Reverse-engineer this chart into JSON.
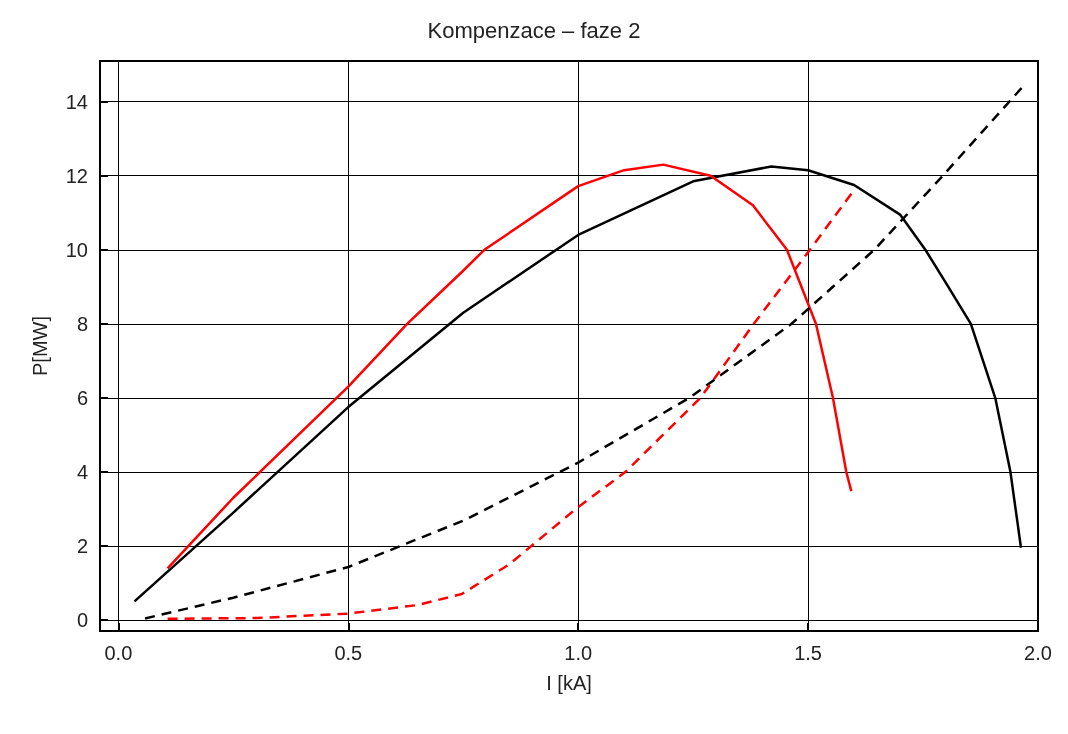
{
  "chart_data": {
    "type": "line",
    "title": "Kompenzace – faze 2",
    "xlabel": "I [kA]",
    "ylabel": "P[MW]",
    "xlim": [
      -0.04,
      2.0
    ],
    "ylim": [
      -0.3,
      15.1
    ],
    "xticks": [
      {
        "value": 0,
        "label": "0.0"
      },
      {
        "value": 0.5,
        "label": "0.5"
      },
      {
        "value": 1,
        "label": "1.0"
      },
      {
        "value": 1.5,
        "label": "1.5"
      },
      {
        "value": 2,
        "label": "2.0"
      }
    ],
    "yticks": [
      0,
      2,
      4,
      6,
      8,
      10,
      12,
      14
    ],
    "grid": true,
    "marker": "none",
    "series": [
      {
        "color": "#000000",
        "line_style": "solid",
        "x": [
          0.035,
          0.25,
          0.5,
          0.75,
          1.0,
          1.25,
          1.42,
          1.5,
          1.6,
          1.7,
          1.755,
          1.8,
          1.854,
          1.907,
          1.94,
          1.963
        ],
        "values": [
          0.5,
          2.9,
          5.75,
          8.3,
          10.4,
          11.85,
          12.25,
          12.15,
          11.75,
          10.95,
          10,
          9.1,
          8,
          6,
          4,
          1.95
        ]
      },
      {
        "color": "#ff0000",
        "line_style": "solid",
        "x": [
          0.107,
          0.25,
          0.5,
          0.628,
          0.747,
          0.796,
          1.0,
          1.1,
          1.185,
          1.288,
          1.38,
          1.454,
          1.517,
          1.554,
          1.583,
          1.594
        ],
        "values": [
          1.39,
          3.3,
          6.3,
          8,
          9.4,
          10,
          11.72,
          12.15,
          12.3,
          12,
          11.2,
          10,
          8,
          6,
          4,
          3.48
        ]
      },
      {
        "color": "#000000",
        "line_style": "dashed",
        "x": [
          0.058,
          0.25,
          0.5,
          0.75,
          1.0,
          1.242,
          1.464,
          1.644,
          1.793,
          1.965
        ],
        "values": [
          0.04,
          0.6,
          1.43,
          2.68,
          4.25,
          6,
          8,
          10,
          12,
          14.38
        ]
      },
      {
        "color": "#ff0000",
        "line_style": "dashed",
        "x": [
          0.107,
          0.3,
          0.5,
          0.65,
          0.747,
          0.85,
          1.0,
          1.103,
          1.266,
          1.382,
          1.504,
          1.595
        ],
        "values": [
          0.03,
          0.05,
          0.17,
          0.4,
          0.7,
          1.5,
          3.05,
          4,
          6,
          8,
          10,
          11.53
        ]
      }
    ]
  }
}
